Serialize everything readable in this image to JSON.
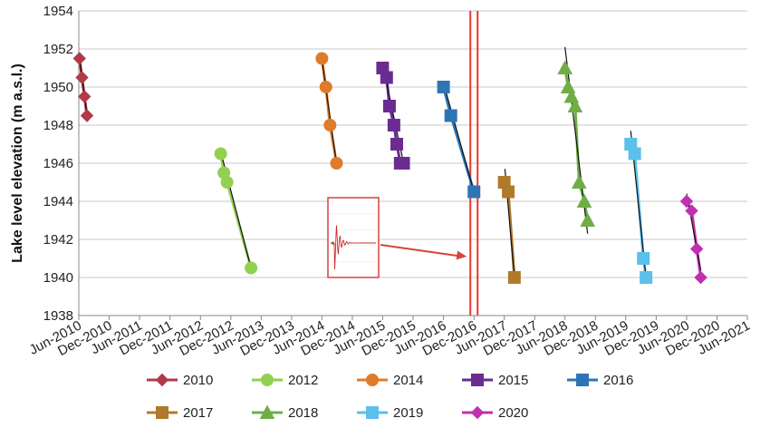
{
  "chart_data": {
    "type": "line",
    "title": "",
    "xlabel": "",
    "ylabel": "Lake level elevation (m a.s.l.)",
    "ylim": [
      1938,
      1954
    ],
    "yticks": [
      1938,
      1940,
      1942,
      1944,
      1946,
      1948,
      1950,
      1952,
      1954
    ],
    "xlim": [
      "2010-06",
      "2021-06"
    ],
    "xticks": [
      "Jun-2010",
      "Dec-2010",
      "Jun-2011",
      "Dec-2011",
      "Jun-2012",
      "Dec-2012",
      "Jun-2013",
      "Dec-2013",
      "Jun-2014",
      "Dec-2014",
      "Jun-2015",
      "Dec-2015",
      "Jun-2016",
      "Dec-2016",
      "Jun-2017",
      "Dec-2017",
      "Jun-2018",
      "Dec-2018",
      "Jun-2019",
      "Dec-2019",
      "Jun-2020",
      "Dec-2020",
      "Jun-2021"
    ],
    "grid": "horizontal",
    "legend_position": "bottom",
    "event_line": {
      "x": "2016-12",
      "color": "#e8392e"
    },
    "inset_arrow_target": {
      "x": "2016-12",
      "y": 1941.1
    },
    "series": [
      {
        "name": "2010",
        "color": "#b23a48",
        "marker": "diamond",
        "x": [
          "2010-06-05",
          "2010-06-20",
          "2010-07-05",
          "2010-07-20"
        ],
        "y": [
          1951.5,
          1950.5,
          1949.5,
          1948.5
        ],
        "trend": {
          "x": [
            "2010-06-01",
            "2010-07-25"
          ],
          "y": [
            1951.8,
            1948.2
          ]
        }
      },
      {
        "name": "2012",
        "color": "#92d050",
        "marker": "circle",
        "x": [
          "2012-10-01",
          "2012-10-20",
          "2012-11-08",
          "2013-04-01"
        ],
        "y": [
          1946.5,
          1945.5,
          1945.0,
          1940.5
        ],
        "trend": {
          "x": [
            "2012-10-01",
            "2013-04-01"
          ],
          "y": [
            1946.6,
            1940.5
          ]
        }
      },
      {
        "name": "2014",
        "color": "#e07b29",
        "marker": "circle",
        "x": [
          "2014-06-01",
          "2014-06-25",
          "2014-07-20",
          "2014-08-28"
        ],
        "y": [
          1951.5,
          1950.0,
          1948.0,
          1946.0
        ],
        "trend": {
          "x": [
            "2014-06-01",
            "2014-08-28"
          ],
          "y": [
            1951.4,
            1946.0
          ]
        }
      },
      {
        "name": "2015",
        "color": "#6a2c91",
        "marker": "square",
        "x": [
          "2015-06-01",
          "2015-06-25",
          "2015-07-12",
          "2015-08-08",
          "2015-08-25",
          "2015-09-15",
          "2015-10-05"
        ],
        "y": [
          1951.0,
          1950.5,
          1949.0,
          1948.0,
          1947.0,
          1946.0,
          1946.0
        ],
        "trend": {
          "x": [
            "2015-06-01",
            "2015-10-05"
          ],
          "y": [
            1951.2,
            1946.0
          ]
        }
      },
      {
        "name": "2016",
        "color": "#2e75b6",
        "marker": "square",
        "x": [
          "2016-06-01",
          "2016-07-15",
          "2016-12-01"
        ],
        "y": [
          1950.0,
          1948.5,
          1944.5
        ],
        "trend": {
          "x": [
            "2016-06-01",
            "2016-12-01"
          ],
          "y": [
            1950.2,
            1944.5
          ]
        }
      },
      {
        "name": "2017",
        "color": "#b07a2a",
        "marker": "square",
        "x": [
          "2017-06-01",
          "2017-06-25",
          "2017-08-01"
        ],
        "y": [
          1945.0,
          1944.5,
          1940.0
        ],
        "trend": {
          "x": [
            "2017-06-05",
            "2017-08-01"
          ],
          "y": [
            1945.7,
            1940.0
          ]
        }
      },
      {
        "name": "2018",
        "color": "#70ad47",
        "marker": "triangle",
        "x": [
          "2018-06-01",
          "2018-06-20",
          "2018-07-10",
          "2018-08-01",
          "2018-08-25",
          "2018-09-25",
          "2018-10-15"
        ],
        "y": [
          1951.0,
          1950.0,
          1949.5,
          1949.0,
          1945.0,
          1944.0,
          1943.0
        ],
        "trend": {
          "x": [
            "2018-06-01",
            "2018-10-15"
          ],
          "y": [
            1952.1,
            1942.3
          ]
        }
      },
      {
        "name": "2019",
        "color": "#5bc0eb",
        "marker": "square",
        "x": [
          "2019-07-01",
          "2019-07-25",
          "2019-09-15",
          "2019-10-01"
        ],
        "y": [
          1947.0,
          1946.5,
          1941.0,
          1940.0
        ],
        "trend": {
          "x": [
            "2019-07-01",
            "2019-10-01"
          ],
          "y": [
            1947.7,
            1940.0
          ]
        }
      },
      {
        "name": "2020",
        "color": "#c030b0",
        "marker": "diamond",
        "x": [
          "2020-06-01",
          "2020-07-01",
          "2020-08-01",
          "2020-08-25"
        ],
        "y": [
          1944.0,
          1943.5,
          1941.5,
          1940.0
        ],
        "trend": {
          "x": [
            "2020-06-01",
            "2020-08-25"
          ],
          "y": [
            1944.4,
            1940.4
          ]
        }
      }
    ]
  }
}
